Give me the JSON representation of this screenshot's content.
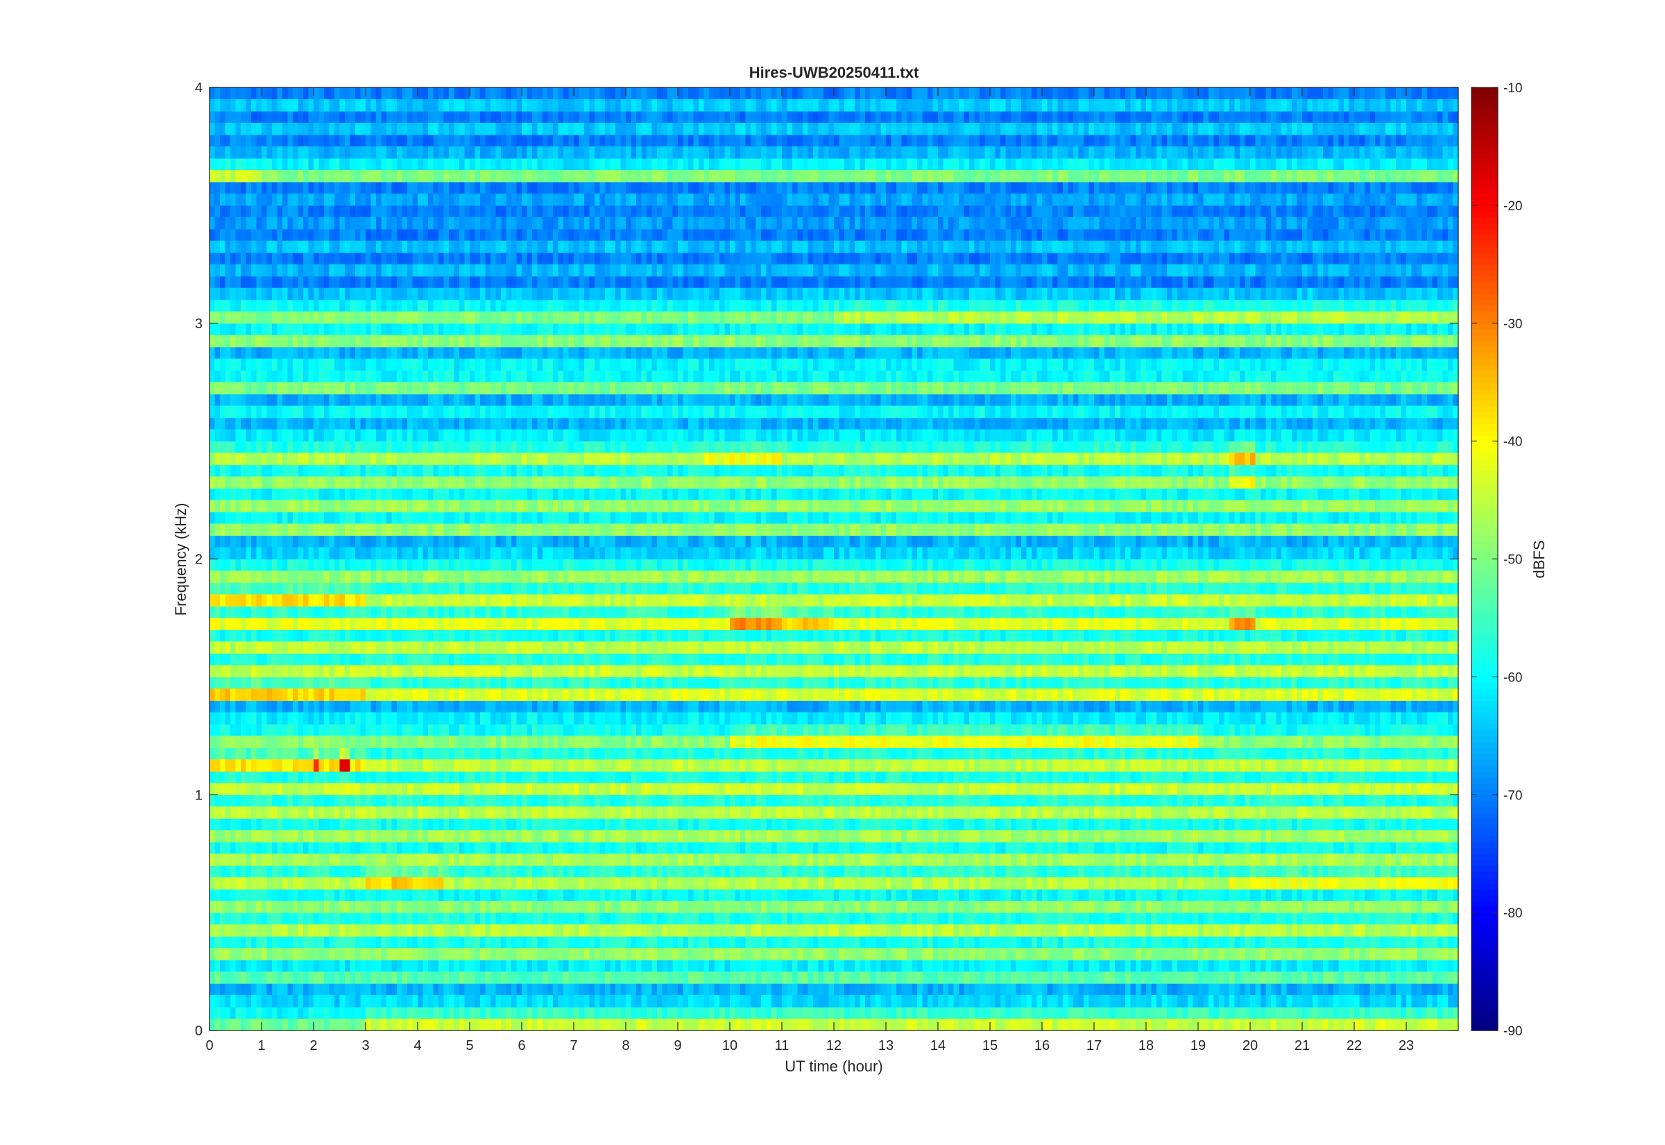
{
  "chart_data": {
    "type": "heatmap",
    "title": "Hires-UWB20250411.txt",
    "xlabel": "UT time (hour)",
    "ylabel": "Frequency (kHz)",
    "xlim": [
      0,
      24
    ],
    "ylim": [
      0,
      4
    ],
    "x_ticks": [
      "0",
      "1",
      "2",
      "3",
      "4",
      "5",
      "6",
      "7",
      "8",
      "9",
      "10",
      "11",
      "12",
      "13",
      "14",
      "15",
      "16",
      "17",
      "18",
      "19",
      "20",
      "21",
      "22",
      "23"
    ],
    "y_ticks": [
      "0",
      "1",
      "2",
      "3",
      "4"
    ],
    "colorbar": {
      "label": "dBFS",
      "range": [
        -90,
        -10
      ],
      "ticks": [
        "-90",
        "-80",
        "-70",
        "-60",
        "-50",
        "-40",
        "-30",
        "-20",
        "-10"
      ],
      "colormap": "jet"
    },
    "band_spacing_khz": 0.1,
    "background_level_dbfs": -62,
    "bands": [
      {
        "f_khz": 0.05,
        "level_dbfs": -50,
        "segments": [
          {
            "from": 3.0,
            "to": 24,
            "level_dbfs": -42
          }
        ]
      },
      {
        "f_khz": 0.25,
        "level_dbfs": -52
      },
      {
        "f_khz": 0.35,
        "level_dbfs": -47
      },
      {
        "f_khz": 0.45,
        "level_dbfs": -46
      },
      {
        "f_khz": 0.55,
        "level_dbfs": -49
      },
      {
        "f_khz": 0.65,
        "level_dbfs": -44,
        "segments": [
          {
            "from": 3.0,
            "to": 4.5,
            "level_dbfs": -35
          },
          {
            "from": 19.6,
            "to": 24,
            "level_dbfs": -40
          }
        ]
      },
      {
        "f_khz": 0.75,
        "level_dbfs": -48
      },
      {
        "f_khz": 0.85,
        "level_dbfs": -47
      },
      {
        "f_khz": 0.95,
        "level_dbfs": -45
      },
      {
        "f_khz": 1.05,
        "level_dbfs": -46
      },
      {
        "f_khz": 1.15,
        "level_dbfs": -45,
        "segments": [
          {
            "from": 0,
            "to": 3.0,
            "level_dbfs": -38
          },
          {
            "from": 2.0,
            "to": 2.15,
            "level_dbfs": -22
          },
          {
            "from": 2.5,
            "to": 2.75,
            "level_dbfs": -20
          }
        ]
      },
      {
        "f_khz": 1.25,
        "level_dbfs": -48,
        "segments": [
          {
            "from": 10.0,
            "to": 19.0,
            "level_dbfs": -40
          }
        ]
      },
      {
        "f_khz": 1.45,
        "level_dbfs": -44,
        "segments": [
          {
            "from": 0,
            "to": 3.0,
            "level_dbfs": -38
          }
        ]
      },
      {
        "f_khz": 1.55,
        "level_dbfs": -45
      },
      {
        "f_khz": 1.65,
        "level_dbfs": -47
      },
      {
        "f_khz": 1.75,
        "level_dbfs": -44,
        "segments": [
          {
            "from": 10.0,
            "to": 11.0,
            "level_dbfs": -33
          },
          {
            "from": 11.0,
            "to": 12.0,
            "level_dbfs": -38
          },
          {
            "from": 19.6,
            "to": 20.1,
            "level_dbfs": -34
          }
        ]
      },
      {
        "f_khz": 1.85,
        "level_dbfs": -45,
        "segments": [
          {
            "from": 0,
            "to": 3.0,
            "level_dbfs": -38
          }
        ]
      },
      {
        "f_khz": 1.95,
        "level_dbfs": -47
      },
      {
        "f_khz": 2.15,
        "level_dbfs": -50
      },
      {
        "f_khz": 2.25,
        "level_dbfs": -50
      },
      {
        "f_khz": 2.35,
        "level_dbfs": -48,
        "segments": [
          {
            "from": 19.6,
            "to": 20.1,
            "level_dbfs": -40
          }
        ]
      },
      {
        "f_khz": 2.45,
        "level_dbfs": -45,
        "segments": [
          {
            "from": 9.5,
            "to": 11.0,
            "level_dbfs": -40
          },
          {
            "from": 19.6,
            "to": 20.1,
            "level_dbfs": -34
          }
        ]
      },
      {
        "f_khz": 2.75,
        "level_dbfs": -50
      },
      {
        "f_khz": 2.95,
        "level_dbfs": -50
      },
      {
        "f_khz": 3.05,
        "level_dbfs": -50,
        "segments": [
          {
            "from": 12.0,
            "to": 24,
            "level_dbfs": -46
          }
        ]
      },
      {
        "f_khz": 3.65,
        "level_dbfs": -52,
        "segments": [
          {
            "from": 0,
            "to": 1.0,
            "level_dbfs": -46
          }
        ]
      }
    ]
  }
}
